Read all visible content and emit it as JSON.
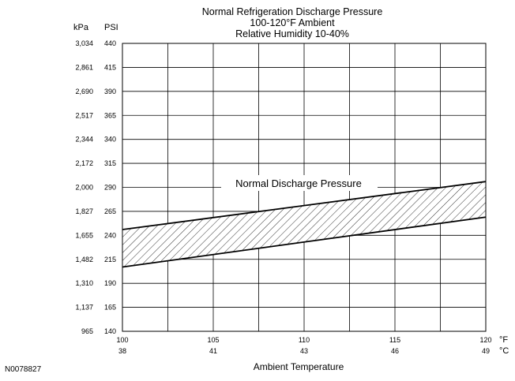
{
  "chart_data": {
    "type": "area",
    "title_lines": [
      "Normal Refrigeration Discharge Pressure",
      "100-120°F Ambient",
      "Relative Humidity 10-40%"
    ],
    "xlabel": "Ambient Temperature",
    "x_unit_primary": "°F",
    "x_unit_secondary": "°C",
    "y_unit_left": "kPa",
    "y_unit_right": "PSI",
    "xlim": [
      100,
      120
    ],
    "ylim": [
      140,
      440
    ],
    "x_ticks": [
      {
        "f": 100,
        "f_label": "100",
        "c_label": "38"
      },
      {
        "f": 105,
        "f_label": "105",
        "c_label": "41"
      },
      {
        "f": 110,
        "f_label": "110",
        "c_label": "43"
      },
      {
        "f": 115,
        "f_label": "115",
        "c_label": "46"
      },
      {
        "f": 120,
        "f_label": "120",
        "c_label": "49"
      }
    ],
    "x_gridlines": [
      100,
      102.5,
      105,
      107.5,
      110,
      112.5,
      115,
      117.5,
      120
    ],
    "y_ticks": [
      {
        "psi": 440,
        "psi_label": "440",
        "kpa_label": "3,034"
      },
      {
        "psi": 415,
        "psi_label": "415",
        "kpa_label": "2,861"
      },
      {
        "psi": 390,
        "psi_label": "390",
        "kpa_label": "2,690"
      },
      {
        "psi": 365,
        "psi_label": "365",
        "kpa_label": "2,517"
      },
      {
        "psi": 340,
        "psi_label": "340",
        "kpa_label": "2,344"
      },
      {
        "psi": 315,
        "psi_label": "315",
        "kpa_label": "2,172"
      },
      {
        "psi": 290,
        "psi_label": "290",
        "kpa_label": "2,000"
      },
      {
        "psi": 265,
        "psi_label": "265",
        "kpa_label": "1,827"
      },
      {
        "psi": 240,
        "psi_label": "240",
        "kpa_label": "1,655"
      },
      {
        "psi": 215,
        "psi_label": "215",
        "kpa_label": "1,482"
      },
      {
        "psi": 190,
        "psi_label": "190",
        "kpa_label": "1,310"
      },
      {
        "psi": 165,
        "psi_label": "165",
        "kpa_label": "1,137"
      },
      {
        "psi": 140,
        "psi_label": "140",
        "kpa_label": "965"
      }
    ],
    "band": {
      "name": "Normal Discharge Pressure",
      "x": [
        100,
        120
      ],
      "upper": [
        246,
        296
      ],
      "lower": [
        207,
        259
      ]
    },
    "grid": true,
    "legend": "none"
  },
  "figure_id": "N0078827"
}
